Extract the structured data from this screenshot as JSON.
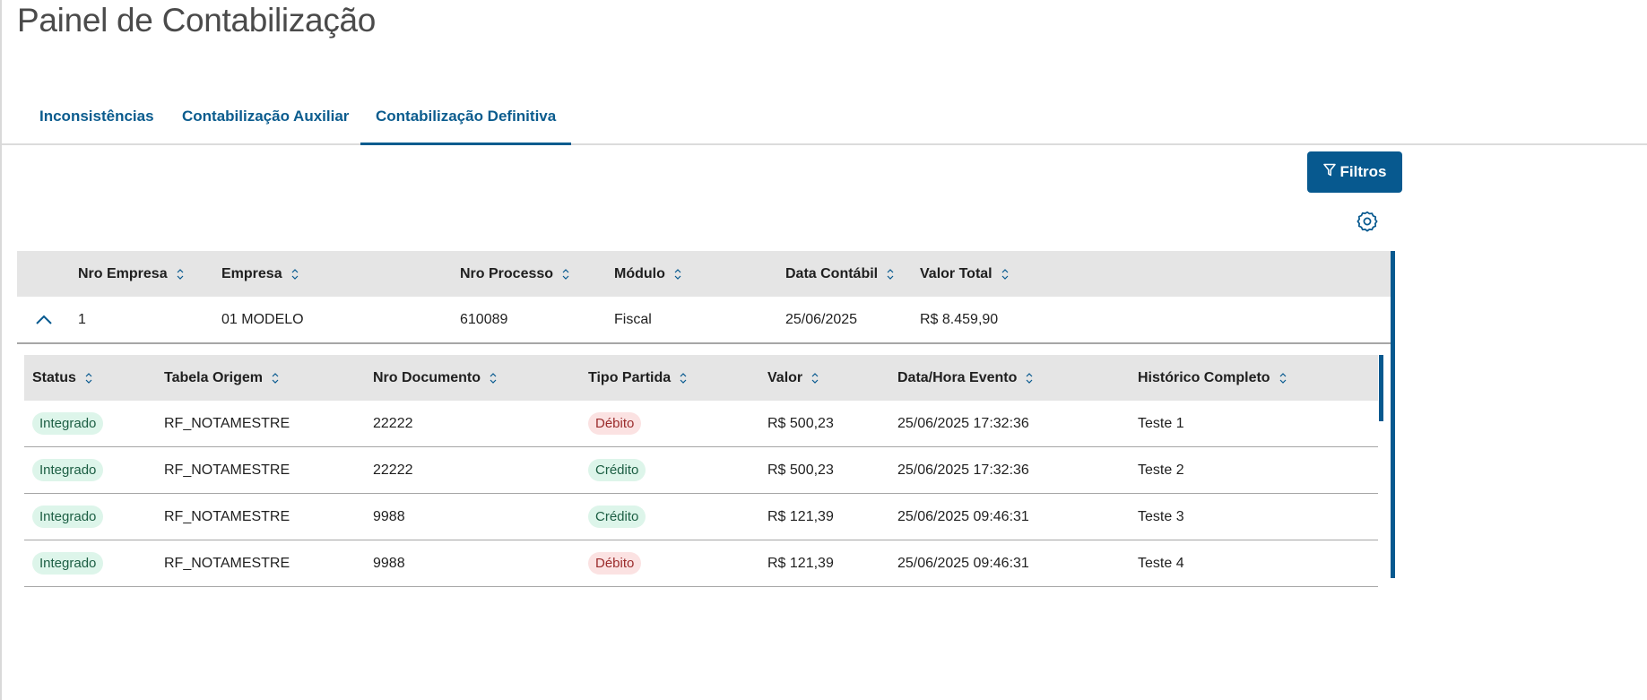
{
  "page": {
    "title": "Painel de Contabilização"
  },
  "tabs": [
    {
      "label": "Inconsistências",
      "active": false
    },
    {
      "label": "Contabilização Auxiliar",
      "active": false
    },
    {
      "label": "Contabilização Definitiva",
      "active": true
    }
  ],
  "toolbar": {
    "filter_label": "Filtros",
    "filter_icon": "funnel-icon",
    "settings_icon": "gear-icon"
  },
  "colors": {
    "accent": "#07598f",
    "success_bg": "#ddf5ea",
    "success_text": "#1c5e43",
    "danger_bg": "#fbe2e2",
    "danger_text": "#9b2b2b",
    "header_bg": "#e5e5e5"
  },
  "outer_table": {
    "columns": [
      "Nro Empresa",
      "Empresa",
      "Nro Processo",
      "Módulo",
      "Data Contábil",
      "Valor Total"
    ],
    "rows": [
      {
        "expanded": true,
        "cells": [
          "1",
          "01 MODELO",
          "610089",
          "Fiscal",
          "25/06/2025",
          "R$ 8.459,90"
        ]
      }
    ]
  },
  "inner_table": {
    "columns": [
      "Status",
      "Tabela Origem",
      "Nro Documento",
      "Tipo Partida",
      "Valor",
      "Data/Hora Evento",
      "Histórico Completo"
    ],
    "rows": [
      {
        "status": "Integrado",
        "tabela": "RF_NOTAMESTRE",
        "documento": "22222",
        "tipo": "Débito",
        "valor": "R$ 500,23",
        "data": "25/06/2025 17:32:36",
        "historico": "Teste 1"
      },
      {
        "status": "Integrado",
        "tabela": "RF_NOTAMESTRE",
        "documento": "22222",
        "tipo": "Crédito",
        "valor": "R$ 500,23",
        "data": "25/06/2025 17:32:36",
        "historico": "Teste 2"
      },
      {
        "status": "Integrado",
        "tabela": "RF_NOTAMESTRE",
        "documento": "9988",
        "tipo": "Crédito",
        "valor": "R$ 121,39",
        "data": "25/06/2025 09:46:31",
        "historico": "Teste 3"
      },
      {
        "status": "Integrado",
        "tabela": "RF_NOTAMESTRE",
        "documento": "9988",
        "tipo": "Débito",
        "valor": "R$ 121,39",
        "data": "25/06/2025 09:46:31",
        "historico": "Teste 4"
      }
    ]
  }
}
